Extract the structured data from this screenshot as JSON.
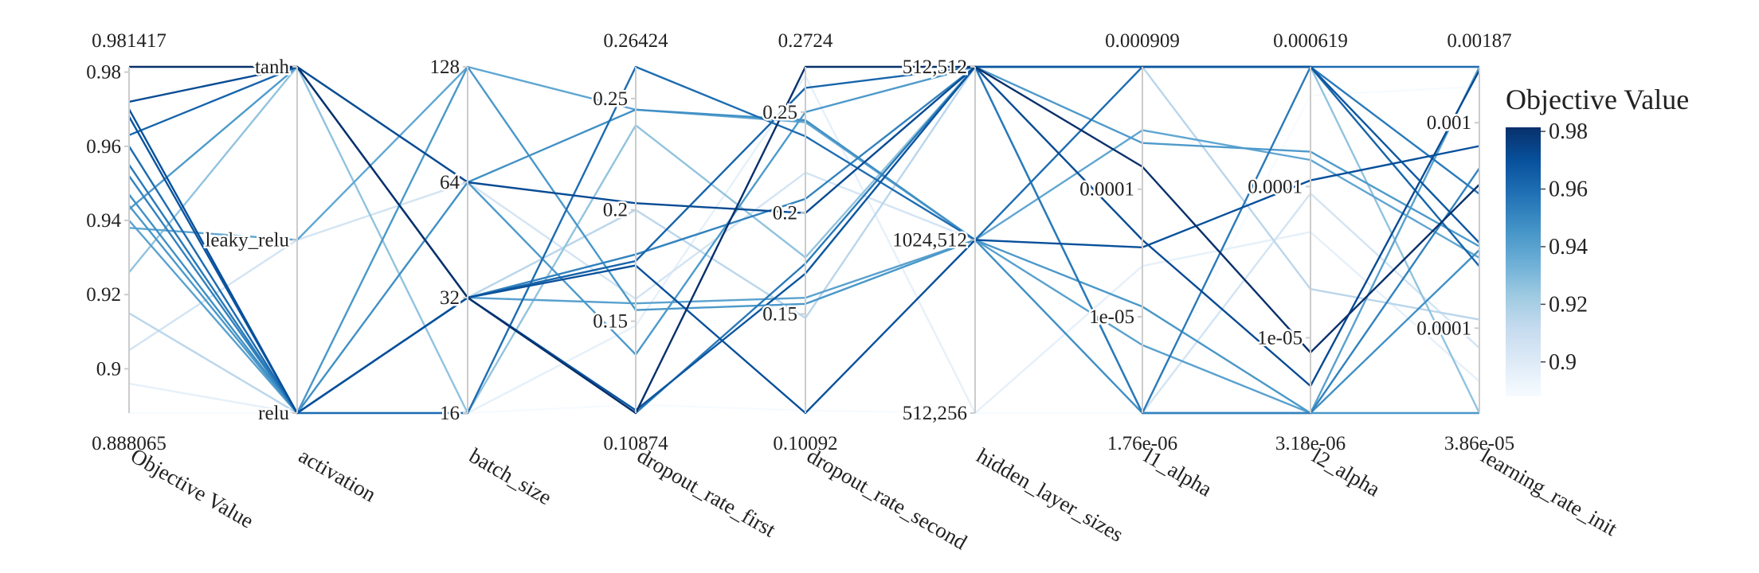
{
  "chart_data": {
    "type": "parallel_coordinates",
    "dimensions": [
      {
        "label": "Objective Value",
        "range_min_label": "0.888065",
        "range_max_label": "0.981417",
        "ticks": [
          "0.9",
          "0.92",
          "0.94",
          "0.96",
          "0.98"
        ],
        "range": [
          0.888065,
          0.981417
        ]
      },
      {
        "label": "activation",
        "ticks": [
          "relu",
          "leaky_relu",
          "tanh"
        ],
        "categories": [
          "relu",
          "leaky_relu",
          "tanh"
        ]
      },
      {
        "label": "batch_size",
        "ticks": [
          "16",
          "32",
          "64",
          "128"
        ],
        "categories": [
          "16",
          "32",
          "64",
          "128"
        ]
      },
      {
        "label": "dropout_rate_first",
        "range_min_label": "0.10874",
        "range_max_label": "0.26424",
        "ticks": [
          "0.15",
          "0.2",
          "0.25"
        ],
        "range": [
          0.10874,
          0.26424
        ]
      },
      {
        "label": "dropout_rate_second",
        "range_min_label": "0.10092",
        "range_max_label": "0.2724",
        "ticks": [
          "0.15",
          "0.2",
          "0.25"
        ],
        "range": [
          0.10092,
          0.2724
        ]
      },
      {
        "label": "hidden_layer_sizes",
        "ticks": [
          "512,256",
          "1024,512",
          "512,512"
        ],
        "categories": [
          "512,256",
          "1024,512",
          "512,512"
        ]
      },
      {
        "label": "l1_alpha",
        "range_min_label": "1.76e-06",
        "range_max_label": "0.000909",
        "ticks": [
          "1e-05",
          "0.0001"
        ],
        "scale": "log",
        "range": [
          1.76e-06,
          0.000909
        ]
      },
      {
        "label": "l2_alpha",
        "range_min_label": "3.18e-06",
        "range_max_label": "0.000619",
        "ticks": [
          "1e-05",
          "0.0001"
        ],
        "scale": "log",
        "range": [
          3.18e-06,
          0.000619
        ]
      },
      {
        "label": "learning_rate_init",
        "range_min_label": "3.86e-05",
        "range_max_label": "0.00187",
        "ticks": [
          "0.0001",
          "0.001"
        ],
        "scale": "log",
        "range": [
          3.86e-05,
          0.00187
        ]
      }
    ],
    "trials": [
      [
        0.981417,
        "tanh",
        "32",
        0.10874,
        0.2724,
        "512,512",
        0.00015,
        8e-06,
        0.0005
      ],
      [
        0.972,
        "tanh",
        "64",
        0.203,
        0.2,
        "512,512",
        4e-05,
        4.8e-06,
        0.0018
      ],
      [
        0.97,
        "relu",
        "32",
        0.175,
        0.10092,
        "1024,512",
        3.5e-05,
        0.00011,
        0.00077
      ],
      [
        0.968,
        "relu",
        "32",
        0.11,
        0.17,
        "512,512",
        0.000909,
        0.000619,
        0.00026
      ],
      [
        0.963,
        "tanh",
        "32",
        0.177,
        0.262,
        "512,512",
        0.000909,
        0.000619,
        0.0002
      ],
      [
        0.96,
        "relu",
        "16",
        0.26424,
        0.238,
        "1024,512",
        0.000909,
        0.000619,
        0.00187
      ],
      [
        0.955,
        "relu",
        "32",
        0.10874,
        0.175,
        "512,512",
        1.76e-06,
        0.000619,
        0.00045
      ],
      [
        0.952,
        "relu",
        "32",
        0.18,
        0.207,
        "512,512",
        1.76e-06,
        3.18e-06,
        0.0006
      ],
      [
        0.947,
        "relu",
        "64",
        0.245,
        0.246,
        "1024,512",
        1.76e-06,
        3.18e-06,
        0.00024
      ],
      [
        0.944,
        "relu",
        "128",
        0.155,
        0.155,
        "1024,512",
        1.2e-05,
        3.18e-06,
        3.86e-05
      ],
      [
        0.943,
        "tanh",
        "64",
        0.135,
        0.25,
        "512,512",
        0.00023,
        0.00017,
        0.00025
      ],
      [
        0.94,
        "relu",
        "32",
        0.158,
        0.158,
        "1024,512",
        6e-06,
        3.18e-06,
        0.00187
      ],
      [
        0.938,
        "leaky_relu",
        "128",
        0.245,
        0.245,
        "1024,512",
        0.00029,
        0.00015,
        0.00022
      ],
      [
        0.926,
        "tanh",
        "16",
        0.238,
        0.178,
        "512,512",
        0.000909,
        0.000619,
        3.86e-05
      ],
      [
        0.915,
        "relu",
        "32",
        0.2,
        0.148,
        "512,512",
        0.000909,
        2.1e-05,
        0.00011
      ],
      [
        0.905,
        "leaky_relu",
        "64",
        0.16,
        0.22,
        "1024,512",
        1.76e-06,
        9e-05,
        8e-05
      ],
      [
        0.896,
        "relu",
        "16",
        0.148,
        0.268,
        "512,256",
        2.5e-05,
        5e-05,
        5.5e-05
      ],
      [
        0.888065,
        "relu",
        "16",
        0.1125,
        0.1022,
        "512,256",
        1.76e-06,
        0.0004,
        0.0015
      ]
    ],
    "colorbar": {
      "title": "Objective Value",
      "ticks": [
        "0.9",
        "0.92",
        "0.94",
        "0.96",
        "0.98"
      ],
      "tick_values": [
        0.9,
        0.92,
        0.94,
        0.96,
        0.98
      ],
      "range": [
        0.888065,
        0.981417
      ]
    },
    "colorscale": [
      "#f7fbff",
      "#deebf7",
      "#c6dbef",
      "#9ecae1",
      "#6baed6",
      "#4292c6",
      "#2171b5",
      "#08519c",
      "#08306b"
    ],
    "axis_color": "#cccccc"
  }
}
